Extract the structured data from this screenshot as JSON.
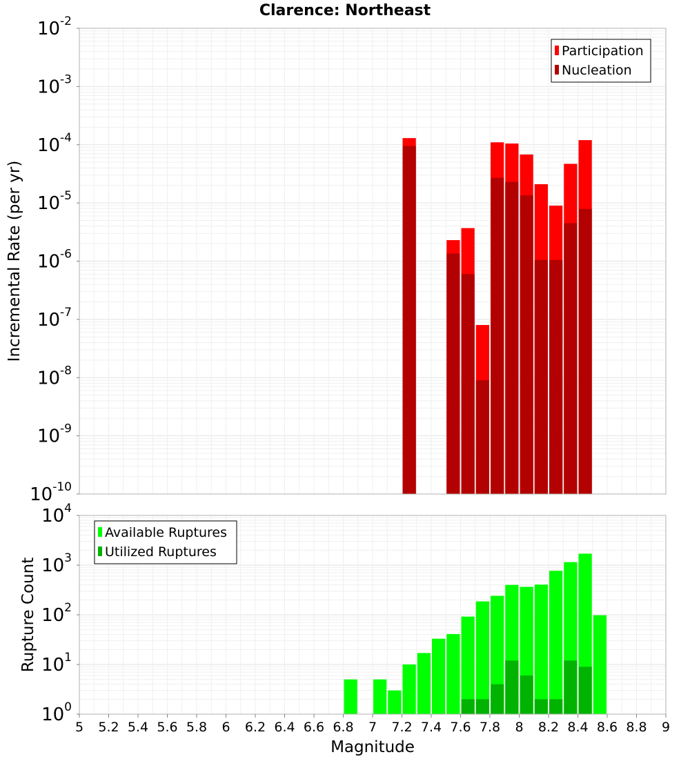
{
  "chart_data": {
    "title": "Clarence: Northeast",
    "xlabel": "Magnitude",
    "x_ticks": [
      "5",
      "5.2",
      "5.4",
      "5.6",
      "5.8",
      "6",
      "6.2",
      "6.4",
      "6.6",
      "6.8",
      "7",
      "7.2",
      "7.4",
      "7.6",
      "7.8",
      "8",
      "8.2",
      "8.4",
      "8.6",
      "8.8",
      "9"
    ],
    "xlim": [
      5,
      9
    ],
    "bin_width": 0.1,
    "panels": [
      {
        "type": "bar",
        "scale": "log",
        "ylabel": "Incremental Rate (per yr)",
        "ylim_exponents": [
          -10,
          -2
        ],
        "grid": true,
        "legend_position": "top-right",
        "series": [
          {
            "name": "Participation",
            "color": "#ff0000",
            "x": [
              7.25,
              7.55,
              7.65,
              7.75,
              7.85,
              7.95,
              8.05,
              8.15,
              8.25,
              8.35,
              8.45
            ],
            "values": [
              0.00013,
              2.3e-06,
              3.7e-06,
              8e-08,
              0.00011,
              0.000105,
              6.8e-05,
              2.1e-05,
              9e-06,
              4.7e-05,
              0.00012
            ]
          },
          {
            "name": "Nucleation",
            "color": "#b30000",
            "x": [
              7.25,
              7.55,
              7.65,
              7.75,
              7.85,
              7.95,
              8.05,
              8.15,
              8.25,
              8.35,
              8.45
            ],
            "values": [
              9.5e-05,
              1.35e-06,
              6e-07,
              9e-09,
              2.7e-05,
              2.3e-05,
              1.35e-05,
              1.05e-06,
              1.05e-06,
              4.5e-06,
              7.9e-06
            ]
          }
        ]
      },
      {
        "type": "bar",
        "scale": "log",
        "ylabel": "Rupture Count",
        "ylim_exponents": [
          0,
          4
        ],
        "grid": true,
        "legend_position": "top-left",
        "series": [
          {
            "name": "Available Ruptures",
            "color": "#00ff00",
            "x": [
              6.85,
              7.05,
              7.15,
              7.25,
              7.35,
              7.45,
              7.55,
              7.65,
              7.75,
              7.85,
              7.95,
              8.05,
              8.15,
              8.25,
              8.35,
              8.45,
              8.55
            ],
            "values": [
              5,
              5,
              3,
              10,
              17,
              33,
              41,
              92,
              186,
              241,
              400,
              365,
              405,
              768,
              1150,
              1700,
              98
            ]
          },
          {
            "name": "Utilized Ruptures",
            "color": "#00b300",
            "x": [
              7.25,
              7.55,
              7.65,
              7.75,
              7.85,
              7.95,
              8.05,
              8.15,
              8.25,
              8.35,
              8.45
            ],
            "values": [
              1,
              1,
              2,
              2,
              4,
              12,
              6,
              2,
              2,
              12,
              9
            ]
          }
        ]
      }
    ]
  }
}
